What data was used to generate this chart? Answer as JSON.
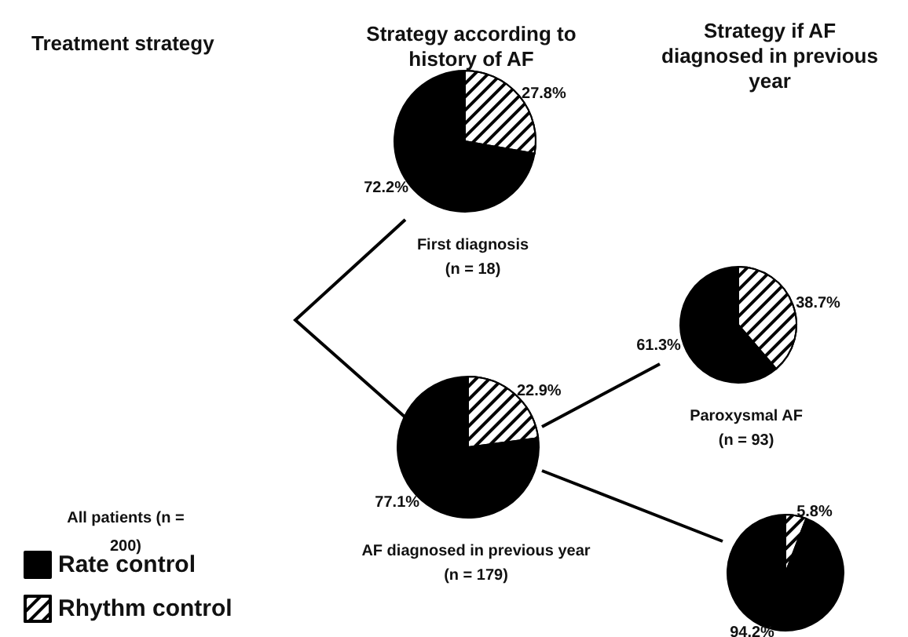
{
  "chart_data": [
    {
      "type": "other",
      "title": "Treatment strategy",
      "annotations": [
        "Strategy according to history of AF",
        "Strategy if AF diagnosed in previous year",
        "All patients (n = 200)"
      ]
    },
    {
      "type": "pie",
      "title": "First diagnosis",
      "subtitle": "(n = 18)",
      "categories": [
        "Rate control",
        "Rhythm control"
      ],
      "values": [
        72.2,
        27.8
      ],
      "value_labels": [
        "72.2%",
        "27.8%"
      ],
      "colors": [
        "#000000",
        "#ffffff"
      ],
      "legend": "bottom left"
    },
    {
      "type": "pie",
      "title": "AF diagnosed in previous year",
      "subtitle": "(n = 179)",
      "values": [
        77.1,
        22.9
      ],
      "value_labels": [
        "77.1%",
        "22.9%"
      ],
      "colors": [
        "#000000",
        "#ffffff"
      ]
    },
    {
      "type": "pie",
      "title": "Paroxysmal AF",
      "subtitle": "(n = 93)",
      "values": [
        61.3,
        38.7
      ],
      "value_labels": [
        "61.3%",
        "38.7%"
      ],
      "colors": [
        "#000000",
        "#ffffff"
      ]
    },
    {
      "type": "pie",
      "values": [
        94.2,
        5.8
      ],
      "value_labels": [
        "94.2%",
        "5.8%"
      ],
      "colors": [
        "#000000",
        "#ffffff"
      ]
    }
  ]
}
